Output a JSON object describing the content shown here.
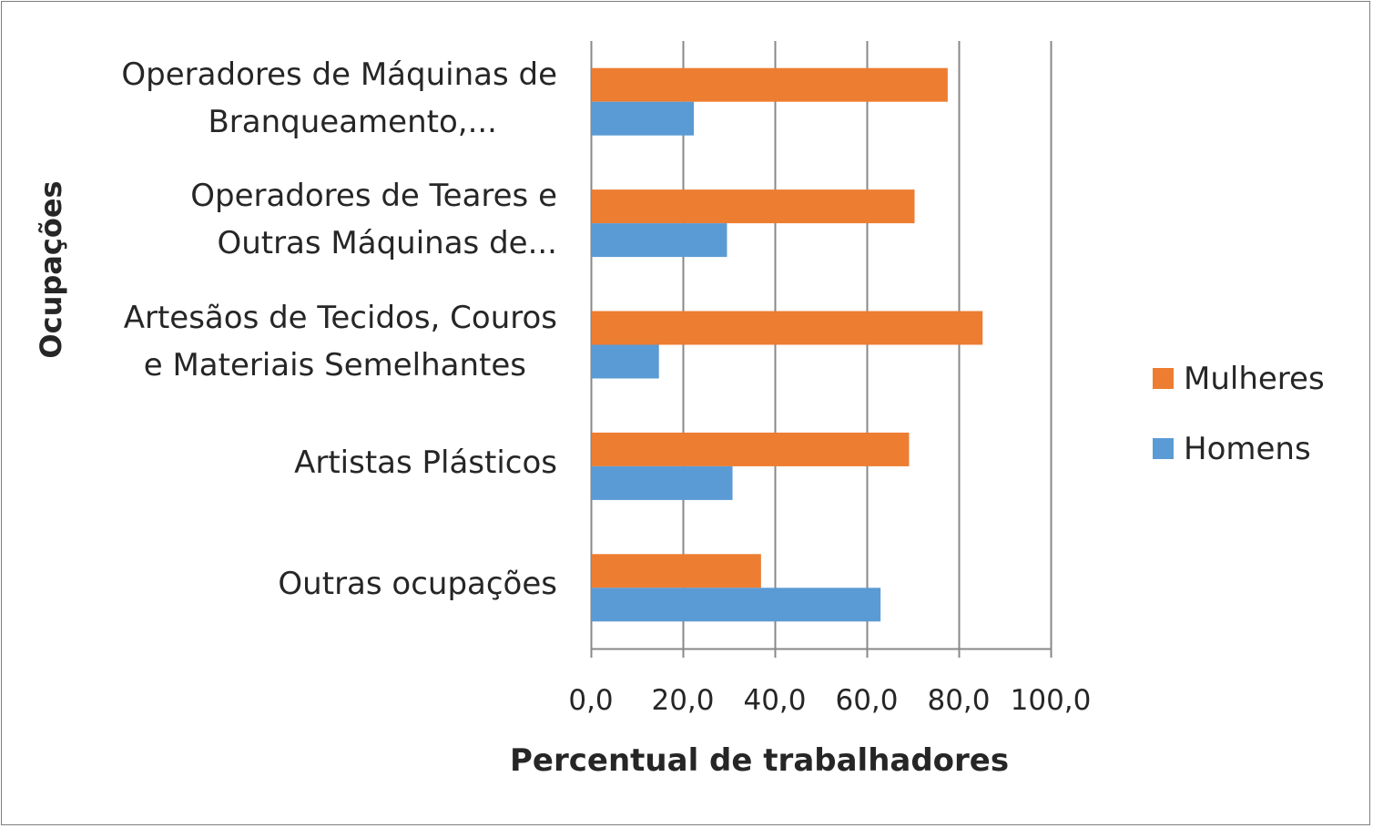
{
  "chart_data": {
    "type": "bar",
    "orientation": "horizontal",
    "categories": [
      [
        "Operadores de Máquinas de",
        "Branqueamento,..."
      ],
      [
        "Operadores de Teares e",
        "Outras Máquinas de..."
      ],
      [
        "Artesãos de Tecidos, Couros",
        "e Materiais Semelhantes"
      ],
      [
        "Artistas Plásticos"
      ],
      [
        "Outras ocupações"
      ]
    ],
    "series": [
      {
        "name": "Mulheres",
        "color": "#ed7d31",
        "values": [
          77.6,
          70.4,
          85.2,
          69.2,
          37.0
        ]
      },
      {
        "name": "Homens",
        "color": "#5b9bd5",
        "values": [
          22.4,
          29.6,
          14.8,
          30.8,
          63.0
        ]
      }
    ],
    "xlim": [
      0,
      100
    ],
    "x_ticks": [
      "0,0",
      "20,0",
      "40,0",
      "60,0",
      "80,0",
      "100,0"
    ],
    "xlabel": "Percentual de trabalhadores",
    "ylabel": "Ocupações",
    "grid": "vertical",
    "legend_position": "right"
  }
}
